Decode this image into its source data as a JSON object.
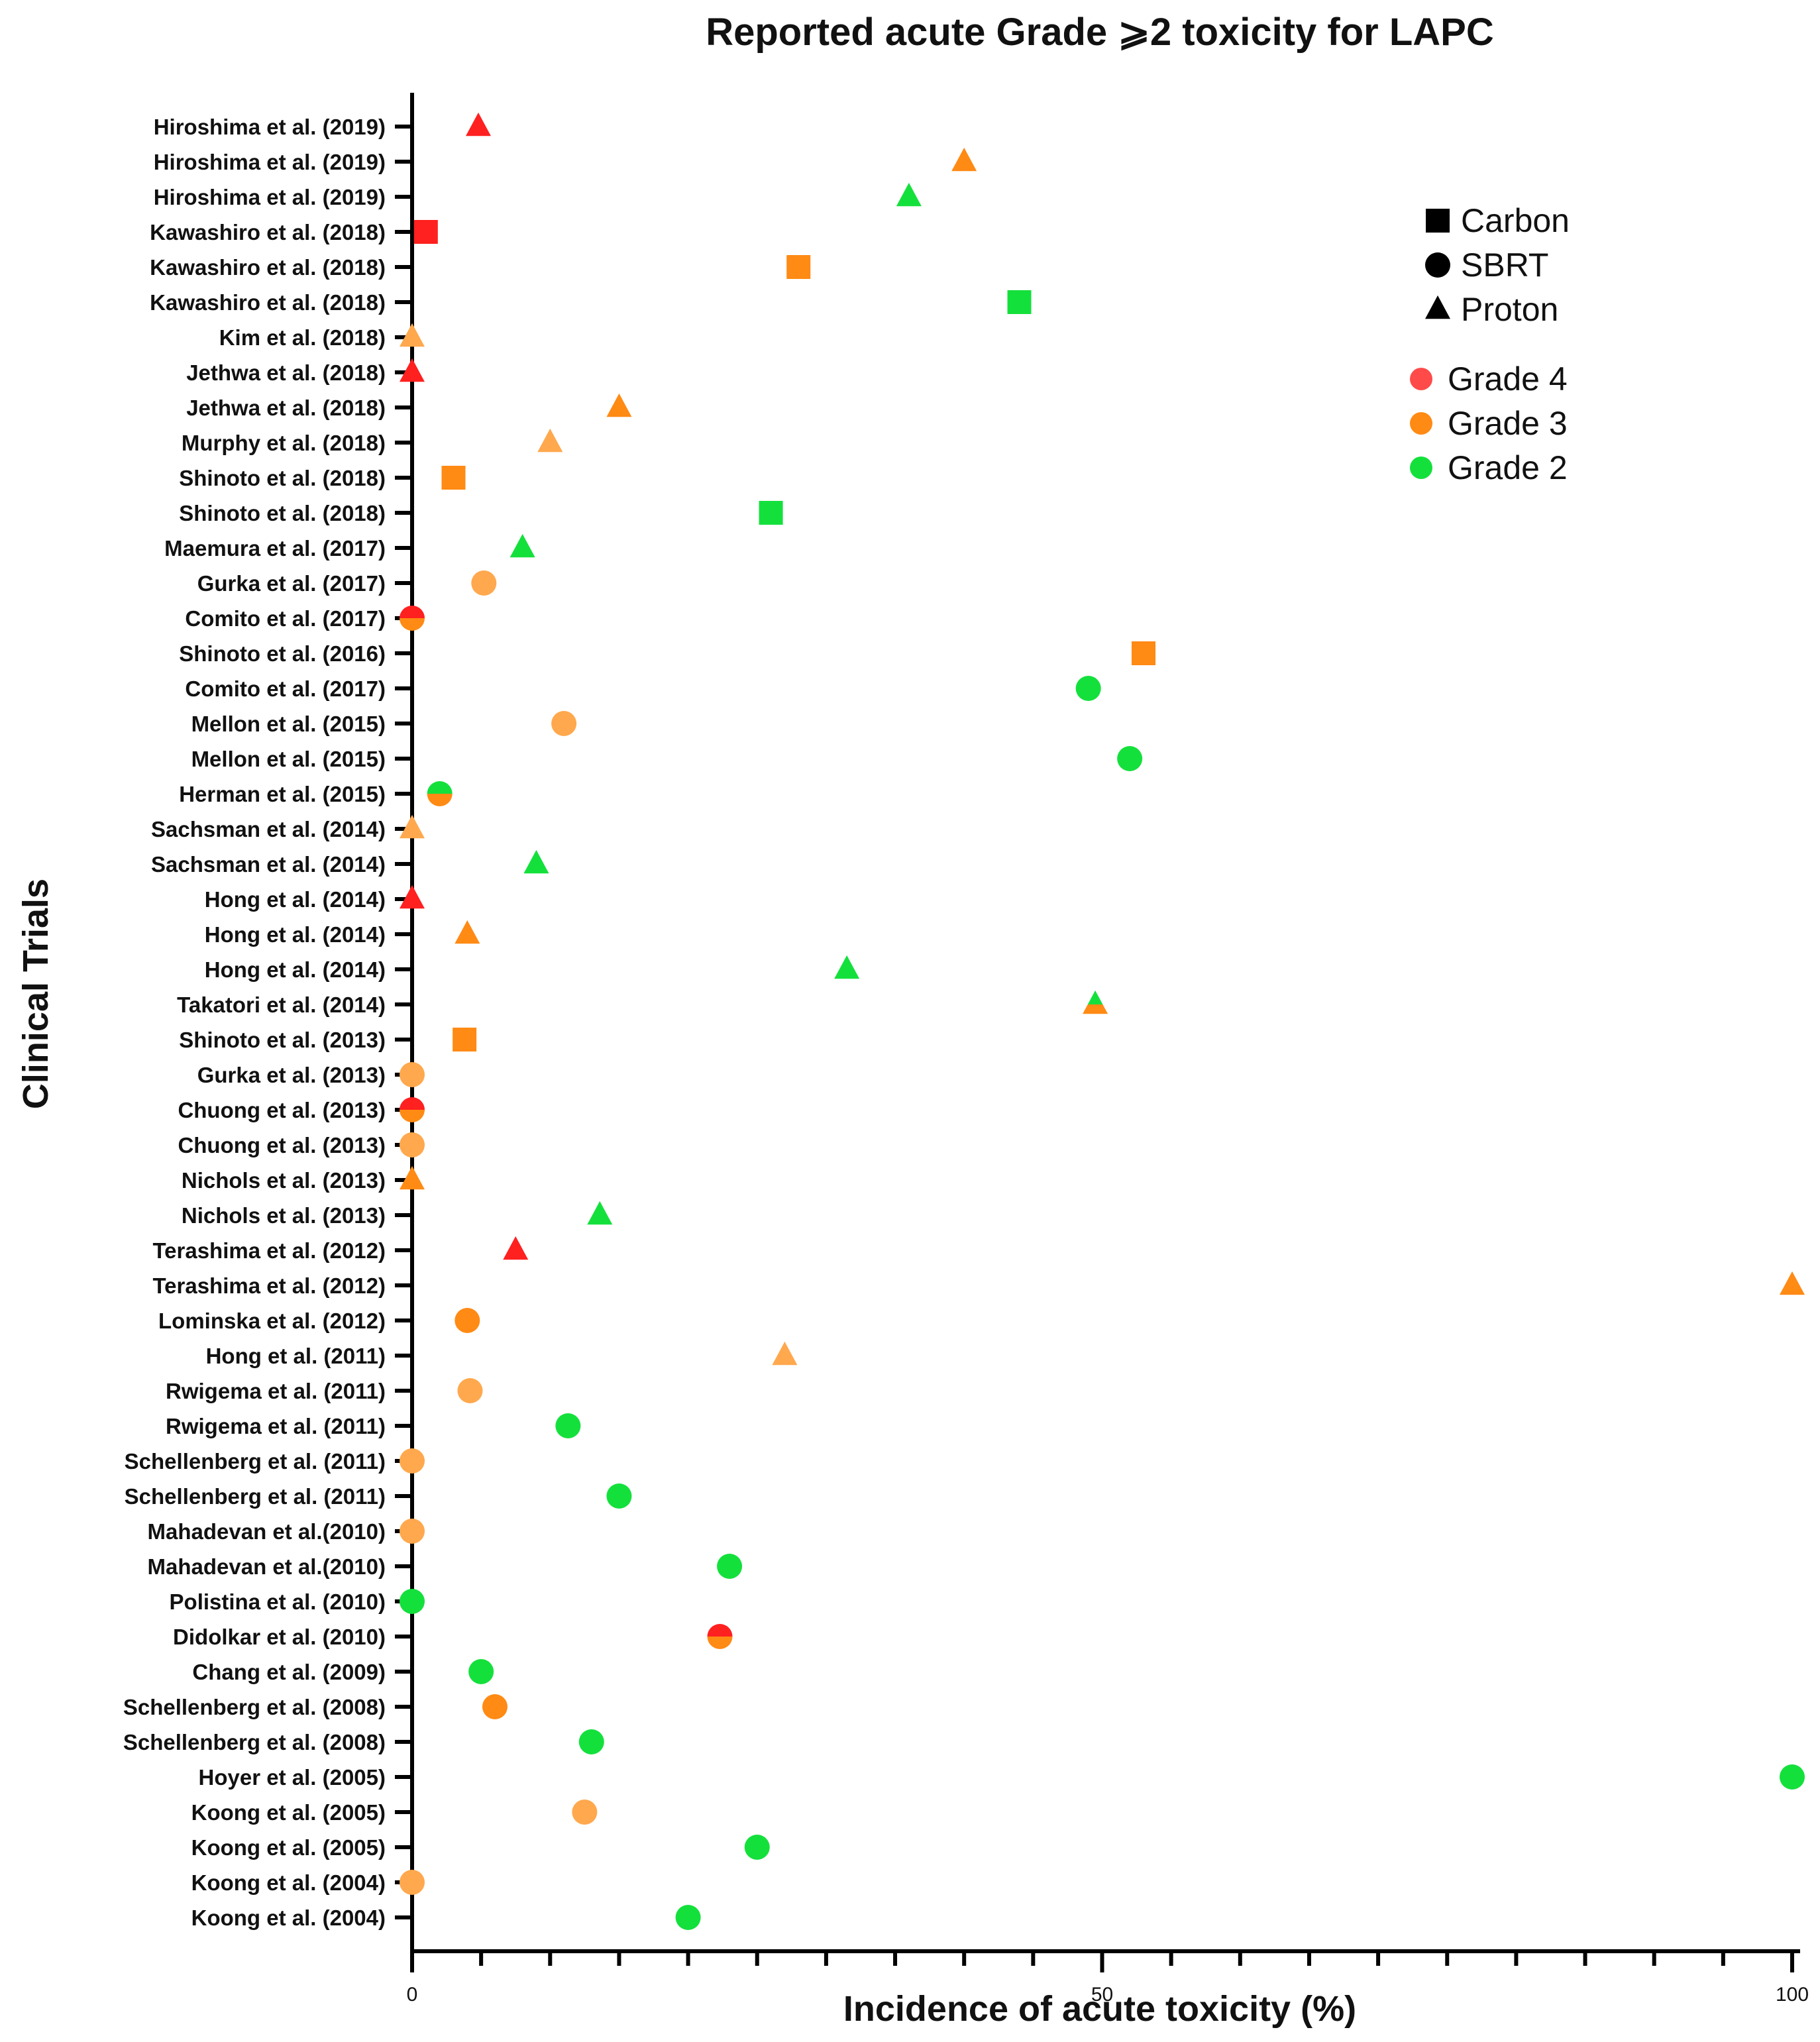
{
  "chart_data": {
    "type": "scatter",
    "title": "Reported acute Grade ⩾2 toxicity for LAPC",
    "xlabel": "Incidence of acute toxicity (%)",
    "ylabel": "Clinical Trials",
    "xlim": [
      0,
      100
    ],
    "xticks": [
      0,
      50,
      100
    ],
    "colors": {
      "grade4": "#ff2020",
      "grade3": "#ff8a14",
      "grade3_light": "#ffa84d",
      "grade2": "#14e03c",
      "ink": "#000000"
    },
    "legend": {
      "markers": [
        {
          "label": "Carbon",
          "shape": "square"
        },
        {
          "label": "SBRT",
          "shape": "circle"
        },
        {
          "label": "Proton",
          "shape": "triangle"
        }
      ],
      "grades": [
        {
          "label": "Grade 4",
          "color": "#ff4a4a"
        },
        {
          "label": "Grade 3",
          "color": "#ff8a14"
        },
        {
          "label": "Grade 2",
          "color": "#14e03c"
        }
      ]
    },
    "categories": [
      "Hiroshima et al. (2019)",
      "Hiroshima et al. (2019)",
      "Hiroshima et al. (2019)",
      "Kawashiro et al. (2018)",
      "Kawashiro et al. (2018)",
      "Kawashiro et al. (2018)",
      "Kim et al. (2018)",
      "Jethwa et al. (2018)",
      "Jethwa et al. (2018)",
      "Murphy et al. (2018)",
      "Shinoto et al. (2018)",
      "Shinoto et al. (2018)",
      "Maemura et al. (2017)",
      "Gurka et al. (2017)",
      "Comito et al. (2017)",
      "Shinoto et al. (2016)",
      "Comito et al. (2017)",
      "Mellon et al. (2015)",
      "Mellon et al. (2015)",
      "Herman et al. (2015)",
      "Sachsman et al. (2014)",
      "Sachsman et al. (2014)",
      "Hong et al. (2014)",
      "Hong et al. (2014)",
      "Hong et al. (2014)",
      "Takatori et al. (2014)",
      "Shinoto et al. (2013)",
      "Gurka et al. (2013)",
      "Chuong et al. (2013)",
      "Chuong et al. (2013)",
      "Nichols et al. (2013)",
      "Nichols et al. (2013)",
      "Terashima et al. (2012)",
      "Terashima et al. (2012)",
      "Lominska et al. (2012)",
      "Hong et al. (2011)",
      "Rwigema et al. (2011)",
      "Rwigema et al. (2011)",
      "Schellenberg et al. (2011)",
      "Schellenberg et al. (2011)",
      "Mahadevan et al.(2010)",
      "Mahadevan et al.(2010)",
      "Polistina et al. (2010)",
      "Didolkar et al. (2010)",
      "Chang et al. (2009)",
      "Schellenberg et al. (2008)",
      "Schellenberg et al. (2008)",
      "Hoyer et al. (2005)",
      "Koong et al. (2005)",
      "Koong et al. (2005)",
      "Koong et al. (2004)",
      "Koong et al. (2004)"
    ],
    "points": [
      {
        "row": 0,
        "x": 4.8,
        "shape": "triangle",
        "grade": 4
      },
      {
        "row": 1,
        "x": 40,
        "shape": "triangle",
        "grade": 3
      },
      {
        "row": 2,
        "x": 36,
        "shape": "triangle",
        "grade": 2
      },
      {
        "row": 3,
        "x": 1,
        "shape": "square",
        "grade": 4
      },
      {
        "row": 4,
        "x": 28,
        "shape": "square",
        "grade": 3
      },
      {
        "row": 5,
        "x": 44,
        "shape": "square",
        "grade": 2
      },
      {
        "row": 6,
        "x": 0,
        "shape": "triangle",
        "grade": 3,
        "light": true
      },
      {
        "row": 7,
        "x": 0,
        "shape": "triangle",
        "grade": 4
      },
      {
        "row": 8,
        "x": 15,
        "shape": "triangle",
        "grade": 3
      },
      {
        "row": 9,
        "x": 10,
        "shape": "triangle",
        "grade": 3,
        "light": true
      },
      {
        "row": 10,
        "x": 3,
        "shape": "square",
        "grade": 3
      },
      {
        "row": 11,
        "x": 26,
        "shape": "square",
        "grade": 2
      },
      {
        "row": 12,
        "x": 8,
        "shape": "triangle",
        "grade": 2
      },
      {
        "row": 13,
        "x": 5.2,
        "shape": "circle",
        "grade": 3,
        "light": true
      },
      {
        "row": 14,
        "x": 0,
        "shape": "circle",
        "grade": 4,
        "also": 3
      },
      {
        "row": 15,
        "x": 53,
        "shape": "square",
        "grade": 3
      },
      {
        "row": 16,
        "x": 49,
        "shape": "circle",
        "grade": 2
      },
      {
        "row": 17,
        "x": 11,
        "shape": "circle",
        "grade": 3,
        "light": true
      },
      {
        "row": 18,
        "x": 52,
        "shape": "circle",
        "grade": 2
      },
      {
        "row": 19,
        "x": 2,
        "shape": "circle",
        "grade": 2,
        "also": 3
      },
      {
        "row": 20,
        "x": 0,
        "shape": "triangle",
        "grade": 3,
        "light": true
      },
      {
        "row": 21,
        "x": 9,
        "shape": "triangle",
        "grade": 2
      },
      {
        "row": 22,
        "x": 0,
        "shape": "triangle",
        "grade": 4
      },
      {
        "row": 23,
        "x": 4,
        "shape": "triangle",
        "grade": 3
      },
      {
        "row": 24,
        "x": 31.5,
        "shape": "triangle",
        "grade": 2
      },
      {
        "row": 25,
        "x": 49.5,
        "shape": "triangle",
        "grade": 2,
        "also": 3
      },
      {
        "row": 26,
        "x": 3.8,
        "shape": "square",
        "grade": 3
      },
      {
        "row": 27,
        "x": 0,
        "shape": "circle",
        "grade": 3,
        "light": true
      },
      {
        "row": 28,
        "x": 0,
        "shape": "circle",
        "grade": 4,
        "also": 3
      },
      {
        "row": 29,
        "x": 0,
        "shape": "circle",
        "grade": 3,
        "light": true
      },
      {
        "row": 30,
        "x": 0,
        "shape": "triangle",
        "grade": 3
      },
      {
        "row": 31,
        "x": 13.6,
        "shape": "triangle",
        "grade": 2
      },
      {
        "row": 32,
        "x": 7.5,
        "shape": "triangle",
        "grade": 4
      },
      {
        "row": 33,
        "x": 100,
        "shape": "triangle",
        "grade": 3
      },
      {
        "row": 34,
        "x": 4,
        "shape": "circle",
        "grade": 3
      },
      {
        "row": 35,
        "x": 27,
        "shape": "triangle",
        "grade": 3,
        "light": true
      },
      {
        "row": 36,
        "x": 4.2,
        "shape": "circle",
        "grade": 3,
        "light": true
      },
      {
        "row": 37,
        "x": 11.3,
        "shape": "circle",
        "grade": 2
      },
      {
        "row": 38,
        "x": 0,
        "shape": "circle",
        "grade": 3,
        "light": true
      },
      {
        "row": 39,
        "x": 15,
        "shape": "circle",
        "grade": 2
      },
      {
        "row": 40,
        "x": 0,
        "shape": "circle",
        "grade": 3,
        "light": true
      },
      {
        "row": 41,
        "x": 23,
        "shape": "circle",
        "grade": 2
      },
      {
        "row": 42,
        "x": 0,
        "shape": "circle",
        "grade": 2
      },
      {
        "row": 43,
        "x": 22.3,
        "shape": "circle",
        "grade": 4,
        "also": 3
      },
      {
        "row": 44,
        "x": 5,
        "shape": "circle",
        "grade": 2
      },
      {
        "row": 45,
        "x": 6,
        "shape": "circle",
        "grade": 3
      },
      {
        "row": 46,
        "x": 13,
        "shape": "circle",
        "grade": 2
      },
      {
        "row": 47,
        "x": 100,
        "shape": "circle",
        "grade": 2
      },
      {
        "row": 48,
        "x": 12.5,
        "shape": "circle",
        "grade": 3,
        "light": true
      },
      {
        "row": 49,
        "x": 25,
        "shape": "circle",
        "grade": 2
      },
      {
        "row": 50,
        "x": 0,
        "shape": "circle",
        "grade": 3,
        "light": true
      },
      {
        "row": 51,
        "x": 20,
        "shape": "circle",
        "grade": 2
      }
    ]
  }
}
